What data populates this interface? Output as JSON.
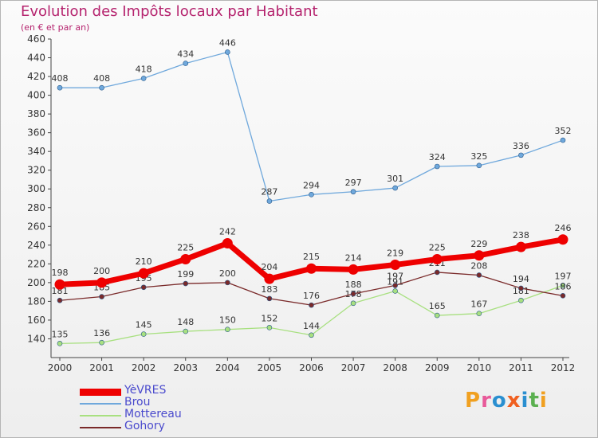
{
  "header": {
    "title": "Evolution des Impôts locaux par Habitant",
    "subtitle": "(en € et par an)"
  },
  "logo": {
    "text": "Proxiti",
    "colors": [
      "#f0a020",
      "#e85a9a",
      "#2a8fd0",
      "#f06020",
      "#2a8fd0",
      "#5bb050",
      "#f0a020"
    ]
  },
  "chart_data": {
    "type": "line",
    "x": [
      "2000",
      "2001",
      "2002",
      "2003",
      "2004",
      "2005",
      "2006",
      "2007",
      "2008",
      "2009",
      "2010",
      "2011",
      "2012"
    ],
    "ylim": [
      120,
      460
    ],
    "yticks": [
      140,
      160,
      180,
      200,
      220,
      240,
      260,
      280,
      300,
      320,
      340,
      360,
      380,
      400,
      420,
      440,
      460
    ],
    "grid": false,
    "legend_position": "bottom-left",
    "series": [
      {
        "name": "Brou",
        "color": "#6fa8dc",
        "values": [
          408,
          408,
          418,
          434,
          446,
          287,
          294,
          297,
          301,
          324,
          325,
          336,
          352
        ]
      },
      {
        "name": "Mottereau",
        "color": "#a8e080",
        "values": [
          135,
          136,
          145,
          148,
          150,
          152,
          144,
          178,
          191,
          165,
          167,
          181,
          197
        ]
      },
      {
        "name": "Gohory",
        "color": "#7a2a2a",
        "values": [
          181,
          185,
          195,
          199,
          200,
          183,
          176,
          188,
          197,
          211,
          208,
          194,
          186
        ]
      },
      {
        "name": "YèVRES",
        "color": "#ee0000",
        "values": [
          198,
          200,
          210,
          225,
          242,
          204,
          215,
          214,
          219,
          225,
          229,
          238,
          246
        ]
      }
    ],
    "legend_order": [
      "YèVRES",
      "Brou",
      "Mottereau",
      "Gohory"
    ]
  }
}
